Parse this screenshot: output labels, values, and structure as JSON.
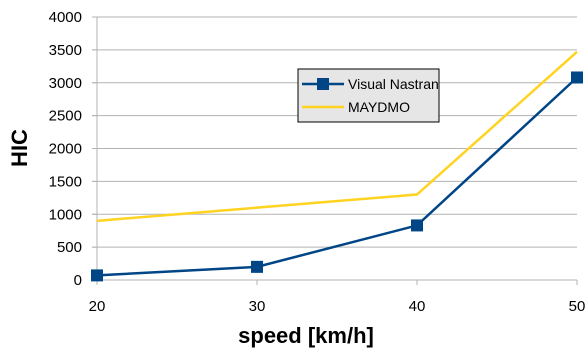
{
  "chart_data": {
    "type": "line",
    "x": [
      20,
      30,
      40,
      50
    ],
    "x_tick_labels": [
      "20",
      "30",
      "40",
      "50"
    ],
    "xlabel": "speed [km/h]",
    "ylabel": "HIC",
    "xlim": [
      20,
      50
    ],
    "ylim": [
      0,
      4000
    ],
    "y_ticks": [
      0,
      500,
      1000,
      1500,
      2000,
      2500,
      3000,
      3500,
      4000
    ],
    "y_tick_labels": [
      "0",
      "500",
      "1000",
      "1500",
      "2000",
      "2500",
      "3000",
      "3500",
      "4000"
    ],
    "grid": "horizontal",
    "legend_position": "right, inside plot area",
    "series": [
      {
        "name": "Visual Nastran",
        "color": "#004586",
        "marker": "square",
        "values": [
          70,
          200,
          830,
          3080
        ]
      },
      {
        "name": "MAYDMO",
        "color": "#ffd320",
        "marker": "none",
        "values": [
          900,
          1100,
          1300,
          3470
        ]
      }
    ]
  }
}
